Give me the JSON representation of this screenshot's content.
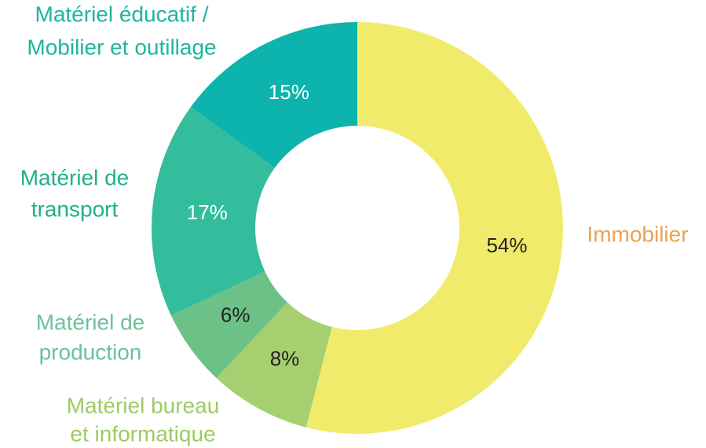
{
  "chart_data": {
    "type": "donut",
    "categories": [
      [
        "Immobilier"
      ],
      [
        "Matériel bureau",
        "et informatique"
      ],
      [
        "Matériel de",
        "production"
      ],
      [
        "Matériel de",
        "transport"
      ],
      [
        "Matériel éducatif /",
        "Mobilier et outillage"
      ]
    ],
    "values": [
      54,
      8,
      6,
      17,
      15
    ],
    "value_labels": [
      "54%",
      "8%",
      "6%",
      "17%",
      "15%"
    ],
    "colors": [
      "#f0eb6a",
      "#a6d06f",
      "#6cc187",
      "#33bd9c",
      "#0db3ad"
    ]
  }
}
